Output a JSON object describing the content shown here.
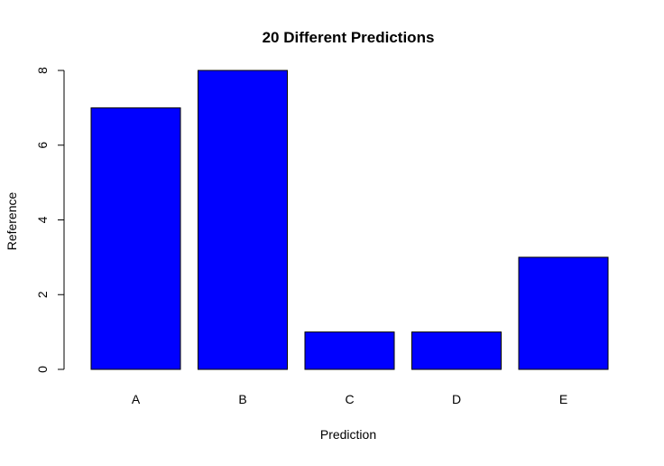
{
  "chart_data": {
    "type": "bar",
    "title": "20 Different Predictions",
    "xlabel": "Prediction",
    "ylabel": "Reference",
    "categories": [
      "A",
      "B",
      "C",
      "D",
      "E"
    ],
    "values": [
      7,
      8,
      1,
      1,
      3
    ],
    "ylim": [
      0,
      8
    ],
    "yticks": [
      "0",
      "2",
      "4",
      "6",
      "8"
    ],
    "grid": false,
    "legend": "none",
    "colors": {
      "bar_fill": "#0000FF",
      "bar_stroke": "#000000",
      "background": "#FFFFFF"
    }
  }
}
